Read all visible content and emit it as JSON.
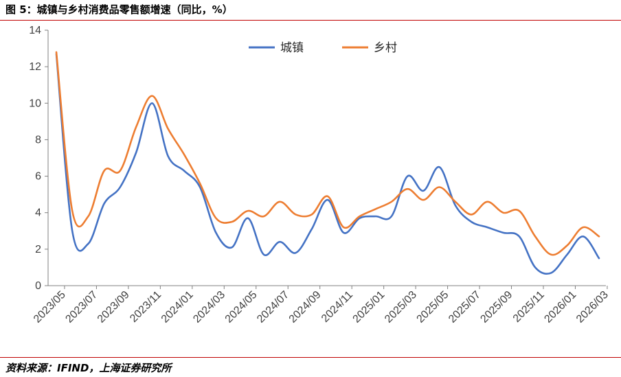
{
  "header": {
    "title": "图 5：城镇与乡村消费品零售额增速（同比，%）"
  },
  "footer": {
    "source": "资料来源：IFIND，上海证券研究所"
  },
  "colors": {
    "rule": "#c00000",
    "urban": "#4472c4",
    "rural": "#ed7d31",
    "axis": "#7f7f7f"
  },
  "chart_data": {
    "type": "line",
    "title": "",
    "xlabel": "",
    "ylabel": "",
    "ylim": [
      0,
      14
    ],
    "yticks": [
      0,
      2,
      4,
      6,
      8,
      10,
      12,
      14
    ],
    "grid": false,
    "legend_position": "top-center",
    "x": [
      "2023/05",
      "2023/06",
      "2023/07",
      "2023/08",
      "2023/09",
      "2023/10",
      "2023/11",
      "2023/12",
      "2024/01",
      "2024/02",
      "2024/03",
      "2024/04",
      "2024/05",
      "2024/06",
      "2024/07",
      "2024/08",
      "2024/09",
      "2024/10",
      "2024/11",
      "2024/12",
      "2025/01",
      "2025/02",
      "2025/03",
      "2025/04",
      "2025/05",
      "2025/06",
      "2025/07",
      "2025/08",
      "2025/09",
      "2025/10",
      "2025/11",
      "2025/12",
      "2026/01",
      "2026/02",
      "2026/03"
    ],
    "xtick_labels": [
      "2023/05",
      "2023/07",
      "2023/09",
      "2023/11",
      "2024/01",
      "2024/03",
      "2024/05",
      "2024/07",
      "2024/09",
      "2024/11",
      "2025/01",
      "2025/03",
      "2025/05",
      "2025/07",
      "2025/09",
      "2025/11",
      "2026/01",
      "2026/03"
    ],
    "series": [
      {
        "name": "城镇",
        "values": [
          12.7,
          3.0,
          2.3,
          4.5,
          5.4,
          7.3,
          10.0,
          7.1,
          6.3,
          5.4,
          2.9,
          2.1,
          3.7,
          1.7,
          2.4,
          1.8,
          3.1,
          4.7,
          2.9,
          3.7,
          3.8,
          3.8,
          6.0,
          5.2,
          6.5,
          4.4,
          3.5,
          3.2,
          2.9,
          2.7,
          1.0,
          0.7,
          1.7,
          2.7,
          1.5
        ]
      },
      {
        "name": "乡村",
        "values": [
          12.8,
          4.1,
          3.8,
          6.3,
          6.3,
          8.7,
          10.4,
          8.6,
          7.2,
          5.6,
          3.7,
          3.5,
          4.1,
          3.8,
          4.6,
          3.9,
          3.9,
          4.9,
          3.2,
          3.8,
          4.2,
          4.6,
          5.3,
          4.7,
          5.4,
          4.6,
          3.9,
          4.6,
          4.0,
          4.1,
          2.7,
          1.7,
          2.2,
          3.2,
          2.7
        ]
      }
    ]
  }
}
